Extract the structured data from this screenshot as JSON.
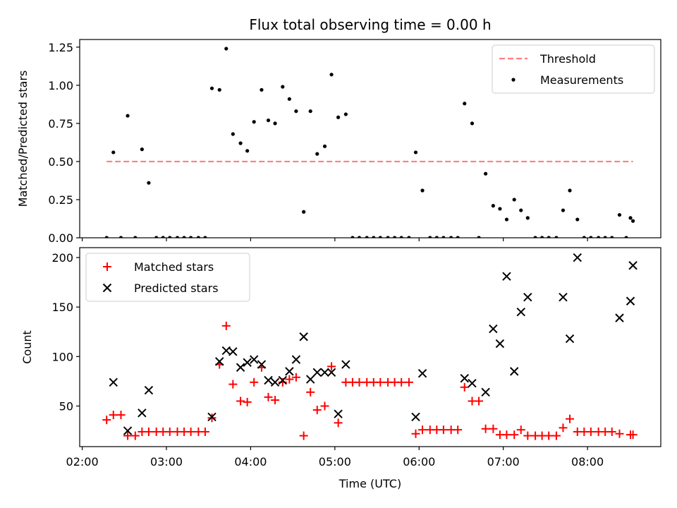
{
  "chart_data": {
    "title": "Flux total observing time = 0.00 h",
    "xlabel": "Time (UTC)",
    "x_unit": "hours UTC",
    "xlim": [
      1.97,
      8.87
    ],
    "xticks": [
      {
        "value": 2,
        "label": "02:00"
      },
      {
        "value": 3,
        "label": "03:00"
      },
      {
        "value": 4,
        "label": "04:00"
      },
      {
        "value": 5,
        "label": "05:00"
      },
      {
        "value": 6,
        "label": "06:00"
      },
      {
        "value": 7,
        "label": "07:00"
      },
      {
        "value": 8,
        "label": "08:00"
      }
    ],
    "panels": [
      {
        "id": "ratio",
        "type": "scatter",
        "ylabel": "Matched/Predicted stars",
        "ylim": [
          0,
          1.3
        ],
        "yticks": [
          "0.00",
          "0.25",
          "0.50",
          "0.75",
          "1.00",
          "1.25"
        ],
        "show_xtick_labels": false,
        "legend": {
          "placement": "top-right",
          "entries": [
            {
              "label": "Threshold",
              "marker": "dashed-line",
              "color": "#ff7f7f"
            },
            {
              "label": "Measurements",
              "marker": "dot",
              "color": "#000000"
            }
          ]
        },
        "threshold": {
          "name": "Threshold",
          "y": 0.5,
          "x_start": 2.29,
          "x_end": 8.54,
          "color": "#ff7f7f"
        },
        "series": [
          {
            "name": "Measurements",
            "marker": "dot",
            "color": "#000000",
            "points": [
              [
                2.29,
                0.0
              ],
              [
                2.37,
                0.56
              ],
              [
                2.46,
                0.0
              ],
              [
                2.54,
                0.8
              ],
              [
                2.63,
                0.0
              ],
              [
                2.71,
                0.58
              ],
              [
                2.79,
                0.36
              ],
              [
                2.88,
                0.0
              ],
              [
                2.96,
                0.0
              ],
              [
                3.04,
                0.0
              ],
              [
                3.13,
                0.0
              ],
              [
                3.21,
                0.0
              ],
              [
                3.29,
                0.0
              ],
              [
                3.38,
                0.0
              ],
              [
                3.46,
                0.0
              ],
              [
                3.54,
                0.98
              ],
              [
                3.63,
                0.97
              ],
              [
                3.71,
                1.24
              ],
              [
                3.79,
                0.68
              ],
              [
                3.88,
                0.62
              ],
              [
                3.96,
                0.57
              ],
              [
                4.04,
                0.76
              ],
              [
                4.13,
                0.97
              ],
              [
                4.21,
                0.77
              ],
              [
                4.29,
                0.75
              ],
              [
                4.38,
                0.99
              ],
              [
                4.46,
                0.91
              ],
              [
                4.54,
                0.83
              ],
              [
                4.63,
                0.17
              ],
              [
                4.71,
                0.83
              ],
              [
                4.79,
                0.55
              ],
              [
                4.88,
                0.6
              ],
              [
                4.96,
                1.07
              ],
              [
                5.04,
                0.79
              ],
              [
                5.13,
                0.81
              ],
              [
                5.21,
                0.0
              ],
              [
                5.29,
                0.0
              ],
              [
                5.38,
                0.0
              ],
              [
                5.46,
                0.0
              ],
              [
                5.54,
                0.0
              ],
              [
                5.63,
                0.0
              ],
              [
                5.71,
                0.0
              ],
              [
                5.79,
                0.0
              ],
              [
                5.88,
                0.0
              ],
              [
                5.96,
                0.56
              ],
              [
                6.04,
                0.31
              ],
              [
                6.13,
                0.0
              ],
              [
                6.21,
                0.0
              ],
              [
                6.29,
                0.0
              ],
              [
                6.38,
                0.0
              ],
              [
                6.46,
                0.0
              ],
              [
                6.54,
                0.88
              ],
              [
                6.63,
                0.75
              ],
              [
                6.71,
                0.0
              ],
              [
                6.79,
                0.42
              ],
              [
                6.88,
                0.21
              ],
              [
                6.96,
                0.19
              ],
              [
                7.04,
                0.12
              ],
              [
                7.13,
                0.25
              ],
              [
                7.21,
                0.18
              ],
              [
                7.29,
                0.13
              ],
              [
                7.38,
                0.0
              ],
              [
                7.46,
                0.0
              ],
              [
                7.54,
                0.0
              ],
              [
                7.63,
                0.0
              ],
              [
                7.71,
                0.18
              ],
              [
                7.79,
                0.31
              ],
              [
                7.88,
                0.12
              ],
              [
                7.96,
                0.0
              ],
              [
                8.04,
                0.0
              ],
              [
                8.13,
                0.0
              ],
              [
                8.21,
                0.0
              ],
              [
                8.29,
                0.0
              ],
              [
                8.38,
                0.15
              ],
              [
                8.46,
                0.0
              ],
              [
                8.51,
                0.13
              ],
              [
                8.54,
                0.11
              ]
            ]
          }
        ]
      },
      {
        "id": "count",
        "type": "scatter",
        "ylabel": "Count",
        "ylim": [
          9,
          210
        ],
        "yticks": [
          "50",
          "100",
          "150",
          "200"
        ],
        "show_xtick_labels": true,
        "legend": {
          "placement": "top-left",
          "entries": [
            {
              "label": "Matched stars",
              "marker": "plus",
              "color": "#ff0000"
            },
            {
              "label": "Predicted stars",
              "marker": "x",
              "color": "#000000"
            }
          ]
        },
        "series": [
          {
            "name": "Matched stars",
            "marker": "plus",
            "color": "#ff0000",
            "points": [
              [
                2.29,
                36
              ],
              [
                2.37,
                41
              ],
              [
                2.46,
                41
              ],
              [
                2.54,
                20
              ],
              [
                2.63,
                20
              ],
              [
                2.71,
                24
              ],
              [
                2.79,
                24
              ],
              [
                2.88,
                24
              ],
              [
                2.96,
                24
              ],
              [
                3.04,
                24
              ],
              [
                3.13,
                24
              ],
              [
                3.21,
                24
              ],
              [
                3.29,
                24
              ],
              [
                3.38,
                24
              ],
              [
                3.46,
                24
              ],
              [
                3.54,
                38
              ],
              [
                3.63,
                92
              ],
              [
                3.71,
                131
              ],
              [
                3.79,
                72
              ],
              [
                3.88,
                55
              ],
              [
                3.96,
                54
              ],
              [
                4.04,
                74
              ],
              [
                4.13,
                89
              ],
              [
                4.21,
                59
              ],
              [
                4.29,
                56
              ],
              [
                4.38,
                74
              ],
              [
                4.46,
                77
              ],
              [
                4.54,
                79
              ],
              [
                4.63,
                20
              ],
              [
                4.71,
                64
              ],
              [
                4.79,
                46
              ],
              [
                4.88,
                50
              ],
              [
                4.96,
                90
              ],
              [
                5.04,
                33
              ],
              [
                5.13,
                74
              ],
              [
                5.21,
                74
              ],
              [
                5.29,
                74
              ],
              [
                5.38,
                74
              ],
              [
                5.46,
                74
              ],
              [
                5.54,
                74
              ],
              [
                5.63,
                74
              ],
              [
                5.71,
                74
              ],
              [
                5.79,
                74
              ],
              [
                5.88,
                74
              ],
              [
                5.96,
                22
              ],
              [
                6.04,
                26
              ],
              [
                6.13,
                26
              ],
              [
                6.21,
                26
              ],
              [
                6.29,
                26
              ],
              [
                6.38,
                26
              ],
              [
                6.46,
                26
              ],
              [
                6.54,
                69
              ],
              [
                6.63,
                55
              ],
              [
                6.71,
                55
              ],
              [
                6.79,
                27
              ],
              [
                6.88,
                27
              ],
              [
                6.96,
                21
              ],
              [
                7.04,
                21
              ],
              [
                7.13,
                21
              ],
              [
                7.21,
                26
              ],
              [
                7.29,
                20
              ],
              [
                7.38,
                20
              ],
              [
                7.46,
                20
              ],
              [
                7.54,
                20
              ],
              [
                7.63,
                20
              ],
              [
                7.71,
                28
              ],
              [
                7.79,
                37
              ],
              [
                7.88,
                24
              ],
              [
                7.96,
                24
              ],
              [
                8.04,
                24
              ],
              [
                8.13,
                24
              ],
              [
                8.21,
                24
              ],
              [
                8.29,
                24
              ],
              [
                8.38,
                22
              ],
              [
                8.51,
                21
              ],
              [
                8.54,
                21
              ]
            ]
          },
          {
            "name": "Predicted stars",
            "marker": "x",
            "color": "#000000",
            "points": [
              [
                2.37,
                74
              ],
              [
                2.54,
                25
              ],
              [
                2.71,
                43
              ],
              [
                2.79,
                66
              ],
              [
                3.54,
                39
              ],
              [
                3.63,
                95
              ],
              [
                3.71,
                106
              ],
              [
                3.79,
                105
              ],
              [
                3.88,
                89
              ],
              [
                3.96,
                94
              ],
              [
                4.04,
                97
              ],
              [
                4.13,
                92
              ],
              [
                4.21,
                76
              ],
              [
                4.29,
                74
              ],
              [
                4.38,
                76
              ],
              [
                4.46,
                85
              ],
              [
                4.54,
                97
              ],
              [
                4.63,
                120
              ],
              [
                4.71,
                77
              ],
              [
                4.79,
                84
              ],
              [
                4.88,
                84
              ],
              [
                4.96,
                84
              ],
              [
                5.04,
                42
              ],
              [
                5.13,
                92
              ],
              [
                5.96,
                39
              ],
              [
                6.04,
                83
              ],
              [
                6.54,
                78
              ],
              [
                6.63,
                73
              ],
              [
                6.79,
                64
              ],
              [
                6.88,
                128
              ],
              [
                6.96,
                113
              ],
              [
                7.04,
                181
              ],
              [
                7.13,
                85
              ],
              [
                7.21,
                145
              ],
              [
                7.29,
                160
              ],
              [
                7.71,
                160
              ],
              [
                7.79,
                118
              ],
              [
                7.88,
                200
              ],
              [
                8.38,
                139
              ],
              [
                8.51,
                156
              ],
              [
                8.54,
                192
              ]
            ]
          }
        ]
      }
    ]
  }
}
